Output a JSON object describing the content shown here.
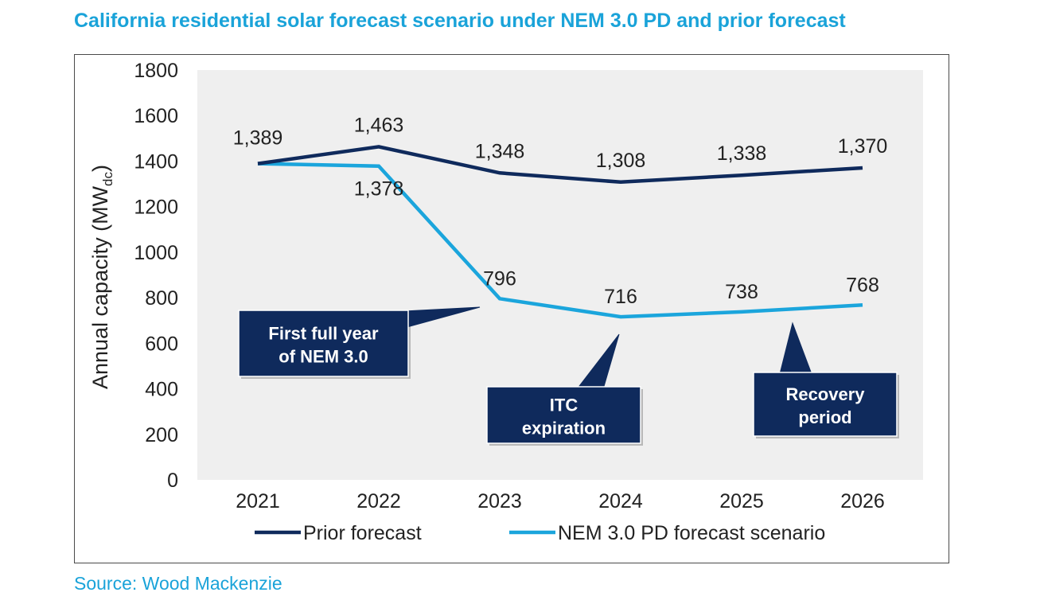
{
  "title": "California residential solar forecast scenario under NEM 3.0 PD and prior forecast",
  "source": "Source: Wood Mackenzie",
  "colors": {
    "prior": "#0f2a5c",
    "nem": "#1ba5dc",
    "plot_bg": "#efefef",
    "callout": "#0f2a5c",
    "title": "#1aa3d9"
  },
  "chart_data": {
    "type": "line",
    "categories": [
      "2021",
      "2022",
      "2023",
      "2024",
      "2025",
      "2026"
    ],
    "ylabel_main": "Annual capacity (MW",
    "ylabel_sub": "dc",
    "ylabel_close": ")",
    "ylim": [
      0,
      1800
    ],
    "yticks": [
      "0",
      "200",
      "400",
      "600",
      "800",
      "1000",
      "1200",
      "1400",
      "1600",
      "1800"
    ],
    "grid": false,
    "legend_position": "bottom",
    "series": [
      {
        "name": "Prior forecast",
        "values": [
          1389,
          1463,
          1348,
          1308,
          1338,
          1370
        ],
        "labels": [
          "1,389",
          "1,463",
          "1,348",
          "1,308",
          "1,338",
          "1,370"
        ]
      },
      {
        "name": "NEM 3.0 PD forecast scenario",
        "values": [
          1389,
          1378,
          796,
          716,
          738,
          768
        ],
        "labels": [
          "",
          "1,378",
          "796",
          "716",
          "738",
          "768"
        ]
      }
    ],
    "annotations": [
      {
        "line1": "First full year",
        "line2": "of NEM 3.0"
      },
      {
        "line1": "ITC",
        "line2": "expiration"
      },
      {
        "line1": "Recovery",
        "line2": "period"
      }
    ]
  }
}
